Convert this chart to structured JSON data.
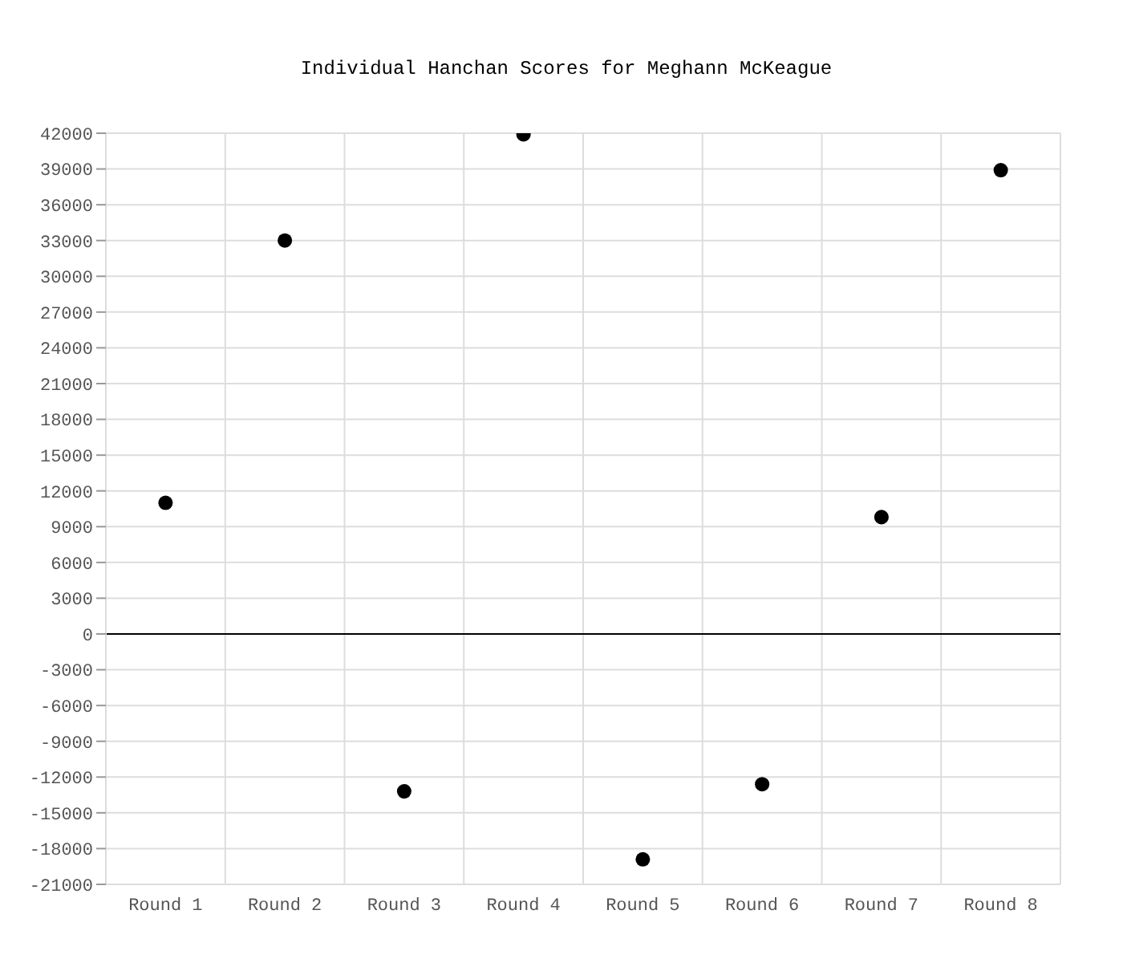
{
  "chart_data": {
    "type": "scatter",
    "title": "Individual Hanchan Scores for Meghann McKeague",
    "categories": [
      "Round 1",
      "Round 2",
      "Round 3",
      "Round 4",
      "Round 5",
      "Round 6",
      "Round 7",
      "Round 8"
    ],
    "values": [
      11000,
      33000,
      -13200,
      41900,
      -18900,
      -12600,
      9800,
      38900
    ],
    "color": "#000000",
    "marker": "circle",
    "ylim": [
      -21000,
      42000
    ],
    "yticks": [
      -21000,
      -18000,
      -15000,
      -12000,
      -9000,
      -6000,
      -3000,
      0,
      3000,
      6000,
      9000,
      12000,
      15000,
      18000,
      21000,
      24000,
      27000,
      30000,
      33000,
      36000,
      39000,
      42000
    ],
    "grid": true,
    "legend": false,
    "ref_lines": [
      {
        "axis": "y",
        "value": 0,
        "color": "#000000"
      }
    ]
  }
}
